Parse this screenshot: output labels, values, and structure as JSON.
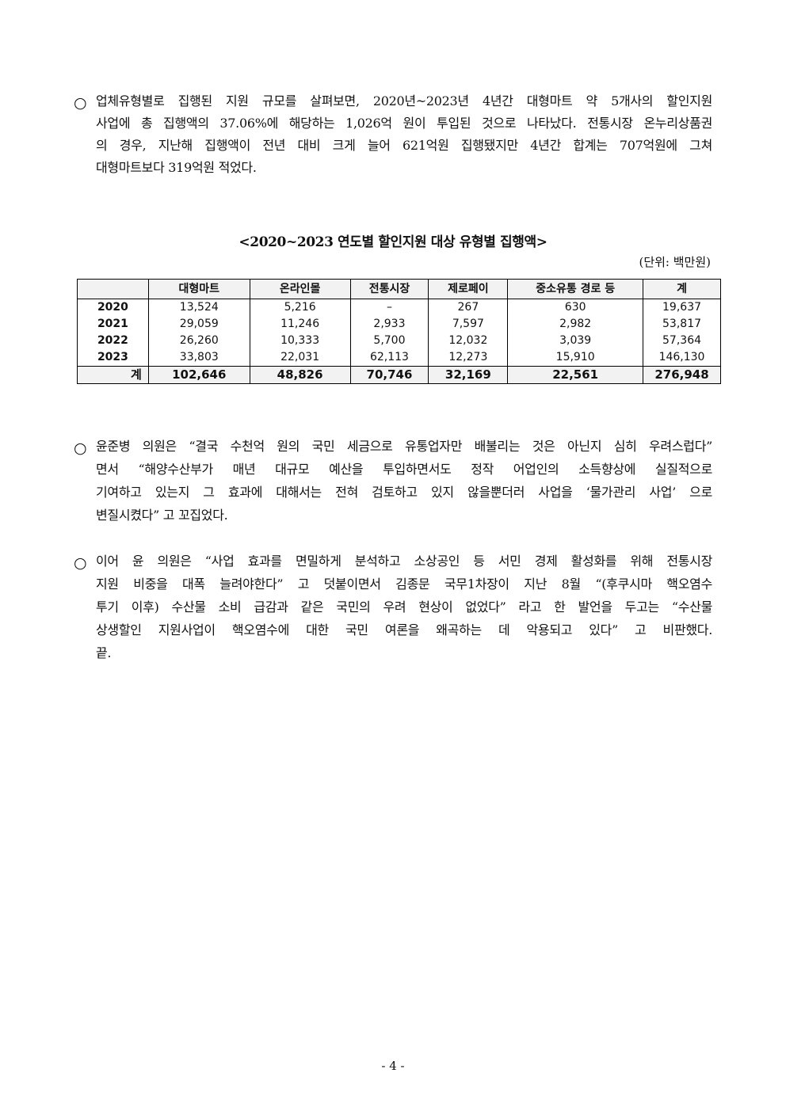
{
  "paragraphs": [
    {
      "bullet": "○",
      "lines": [
        "업체유형별로 집행된 지원 규모를 살펴보면, 2020년~2023년 4년간 대형마트 약 5개사의 할인지원",
        "사업에 총 집행액의 37.06%에 해당하는 1,026억 원이 투입된 것으로 나타났다. 전통시장 온누리상품권",
        "의 경우, 지난해 집행액이 전년 대비 크게 늘어 621억원 집행됐지만 4년간 합계는 707억원에 그쳐",
        "대형마트보다 319억원 적었다."
      ]
    },
    {
      "bullet": "○",
      "lines": [
        "윤준병 의원은 “결국 수천억 원의 국민 세금으로 유통업자만 배불리는 것은 아닌지 심히 우려스럽다”",
        "면서 “해양수산부가 매년 대규모 예산을 투입하면서도 정작 어업인의 소득향상에 실질적으로",
        "기여하고 있는지 그 효과에 대해서는 전혀 검토하고 있지 않을뿐더러 사업을 ‘물가관리 사업’ 으로",
        "변질시켰다” 고 꼬집었다."
      ]
    },
    {
      "bullet": "○",
      "lines": [
        "이어 윤 의원은 “사업 효과를 면밀하게 분석하고 소상공인 등 서민 경제 활성화를 위해 전통시장",
        "지원 비중을 대폭 늘려야한다” 고 덧붙이면서 김종문 국무1차장이 지난 8월 “(후쿠시마 핵오염수",
        "투기 이후) 수산물 소비 급감과 같은 국민의 우려 현상이 없었다” 라고 한 발언을 두고는 “수산물",
        "상생할인 지원사업이 핵오염수에 대한 국민 여론을 왜곡하는 데 악용되고 있다” 고 비판했다.",
        "끝."
      ]
    }
  ],
  "table": {
    "title": "<2020~2023 연도별 할인지원 대상 유형별 집행액>",
    "unit": "(단위: 백만원)",
    "headers": [
      "",
      "대형마트",
      "온라인몰",
      "전통시장",
      "제로페이",
      "중소유통 경로 등",
      "계"
    ],
    "rows": [
      [
        "2020",
        "13,524",
        "5,216",
        "–",
        "267",
        "630",
        "19,637"
      ],
      [
        "2021",
        "29,059",
        "11,246",
        "2,933",
        "7,597",
        "2,982",
        "53,817"
      ],
      [
        "2022",
        "26,260",
        "10,333",
        "5,700",
        "12,032",
        "3,039",
        "57,364"
      ],
      [
        "2023",
        "33,803",
        "22,031",
        "62,113",
        "12,273",
        "15,910",
        "146,130"
      ]
    ],
    "total": [
      "계",
      "102,646",
      "48,826",
      "70,746",
      "32,169",
      "22,561",
      "276,948"
    ]
  },
  "page_number": "- 4 -"
}
